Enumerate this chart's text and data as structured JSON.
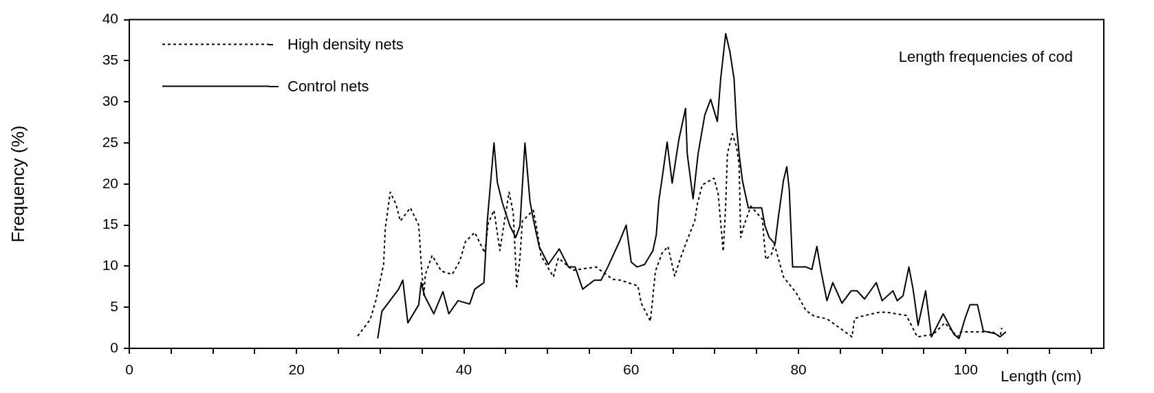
{
  "chart_data": {
    "type": "line",
    "xlabel": "Length (cm)",
    "ylabel": "Frequency (%)",
    "annotations": [
      "Length frequencies of cod"
    ],
    "xlim": [
      0,
      116.5
    ],
    "xticks": [
      0,
      {
        "value": 5,
        "label": null
      },
      {
        "value": 10,
        "label": null
      },
      {
        "value": 15,
        "label": null
      },
      20,
      {
        "value": 25,
        "label": null
      },
      {
        "value": 30,
        "label": null
      },
      {
        "value": 35,
        "label": null
      },
      40,
      {
        "value": 45,
        "label": null
      },
      {
        "value": 50,
        "label": null
      },
      {
        "value": 55,
        "label": null
      },
      60,
      {
        "value": 65,
        "label": null
      },
      {
        "value": 70,
        "label": null
      },
      {
        "value": 75,
        "label": null
      },
      80,
      {
        "value": 85,
        "label": null
      },
      {
        "value": 90,
        "label": null
      },
      {
        "value": 95,
        "label": null
      },
      100,
      {
        "value": 105,
        "label": null
      },
      {
        "value": 110,
        "label": null
      },
      {
        "value": 115,
        "label": null
      }
    ],
    "ylim": [
      0,
      40
    ],
    "yticks": [
      0,
      5,
      10,
      15,
      20,
      25,
      30,
      35,
      40
    ],
    "grid": false,
    "legend": "top left",
    "marker": "none",
    "series": [
      {
        "name": "High density nets",
        "color": "#000000",
        "line_style": "dashed",
        "x": [
          27.3,
          28.8,
          29.5,
          30.4,
          30.6,
          31.2,
          31.9,
          32.4,
          33.6,
          34.6,
          34.9,
          35.2,
          35.4,
          36.2,
          37.3,
          38.6,
          39.5,
          40.2,
          41.3,
          42.5,
          42.9,
          43.6,
          44.3,
          45.4,
          45.9,
          46.2,
          46.3,
          46.7,
          47,
          48.3,
          48.8,
          49.2,
          50.7,
          51.3,
          53,
          55.8,
          57.8,
          58.7,
          60.8,
          61.2,
          62.3,
          62.9,
          63.7,
          64.4,
          65.2,
          65.9,
          66.7,
          67.6,
          67.9,
          68.5,
          69.9,
          70.4,
          71,
          71.3,
          71.5,
          72.1,
          72.6,
          72.9,
          73.1,
          73.5,
          74.3,
          75.7,
          75.9,
          76.1,
          76.8,
          77.1,
          77.6,
          78.2,
          79.7,
          80.9,
          81.9,
          83.4,
          86.4,
          86.7,
          87.5,
          89.7,
          90.5,
          92.9,
          93.8,
          94.2,
          96.1,
          97.5,
          99,
          99.4,
          103.2,
          104.1,
          104.3
        ],
        "values": [
          1.5,
          3.5,
          5.9,
          10.2,
          14.6,
          19,
          17.5,
          15.5,
          17.1,
          15,
          10.3,
          6.5,
          9,
          11.3,
          9.4,
          9,
          10.6,
          13,
          14.1,
          11.6,
          15.2,
          16.8,
          11.9,
          19,
          16.5,
          10.2,
          7.5,
          11,
          15.5,
          16.8,
          14.1,
          11.3,
          8.7,
          11,
          9.5,
          9.9,
          8.4,
          8.3,
          7.6,
          5.5,
          3.3,
          9.4,
          11.6,
          12.4,
          8.8,
          11,
          13.2,
          15.5,
          17.5,
          19.9,
          20.7,
          18.8,
          11.8,
          17.4,
          23.7,
          26.1,
          24.5,
          22.3,
          13.5,
          15,
          17.3,
          15.7,
          13,
          10.8,
          11.5,
          12.7,
          10.9,
          8.7,
          6.8,
          4.6,
          3.9,
          3.6,
          1.4,
          3.6,
          3.9,
          4.4,
          4.4,
          4,
          2.2,
          1.4,
          1.7,
          3.1,
          1.4,
          2,
          2,
          1.4,
          2.5
        ]
      },
      {
        "name": "Control nets",
        "color": "#000000",
        "line_style": "solid",
        "x": [
          29.7,
          30.2,
          32.2,
          32.7,
          33.3,
          34.6,
          34.9,
          35.3,
          36.4,
          37.5,
          38.2,
          39.3,
          40.7,
          41.3,
          42.4,
          42.8,
          43.6,
          44,
          44.6,
          45.5,
          46.2,
          46.7,
          47.3,
          47.9,
          48.3,
          49,
          50.1,
          51.4,
          52.5,
          53.3,
          54.2,
          55.6,
          56.4,
          57.2,
          58.6,
          59.4,
          60,
          60.7,
          61.6,
          62.6,
          63,
          63.3,
          63.7,
          64.3,
          64.9,
          65.7,
          66.5,
          66.7,
          67.4,
          68,
          68.8,
          69.5,
          70.3,
          70.7,
          71.3,
          71.8,
          72.3,
          72.6,
          72.9,
          73.3,
          74,
          75.6,
          76,
          76.5,
          77.2,
          77.6,
          78.2,
          78.6,
          78.9,
          79.3,
          80.9,
          81.6,
          82.2,
          82.7,
          83.4,
          84.1,
          85.2,
          86.3,
          87,
          87.9,
          89.3,
          90,
          91.3,
          91.8,
          92.5,
          93.2,
          93.7,
          94.3,
          95.2,
          95.9,
          97.3,
          98.6,
          99.2,
          99.9,
          100.5,
          101.4,
          102.1,
          103.5,
          104.1,
          104.8
        ],
        "values": [
          1.2,
          4.5,
          7.2,
          8.3,
          3.1,
          5.3,
          8,
          6.4,
          4.2,
          6.9,
          4.2,
          5.8,
          5.4,
          7.2,
          8,
          15.5,
          25,
          20.2,
          17.7,
          14.9,
          13.5,
          14.9,
          25,
          17.9,
          15.7,
          12.4,
          10.2,
          12.1,
          9.9,
          9.9,
          7.2,
          8.3,
          8.3,
          9.9,
          13,
          15,
          10.5,
          9.9,
          10.2,
          11.9,
          13.8,
          17.9,
          20.7,
          25.1,
          20.1,
          25.4,
          29.2,
          23.7,
          18.2,
          23.7,
          28.4,
          30.3,
          27.6,
          32.8,
          38.3,
          36.1,
          32.8,
          27,
          23.7,
          20.4,
          17.1,
          17.1,
          14.9,
          13.5,
          12.7,
          16,
          20.4,
          22.1,
          19.3,
          9.9,
          9.9,
          9.6,
          12.4,
          9.4,
          5.8,
          8,
          5.5,
          7,
          7,
          6,
          8,
          5.8,
          7,
          5.8,
          6.4,
          9.9,
          7.2,
          2.8,
          7,
          1.4,
          4.2,
          1.7,
          1.2,
          3.6,
          5.3,
          5.3,
          2.1,
          1.8,
          1.4,
          2
        ]
      }
    ]
  }
}
